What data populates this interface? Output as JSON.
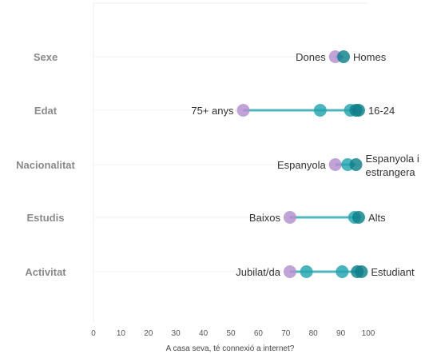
{
  "chart_data": {
    "type": "dumbbell",
    "xlabel": "A casa seva, té connexió a internet?",
    "xlim": [
      0,
      100
    ],
    "x_ticks": [
      0,
      10,
      20,
      30,
      40,
      50,
      60,
      70,
      80,
      90,
      100
    ],
    "colors": {
      "low": "#b48fd0",
      "mid": "#25a3ad",
      "high": "#0f7f8a",
      "line": "#4fb6bf"
    },
    "rows": [
      {
        "category": "Sexe",
        "points": [
          {
            "label": "Dones",
            "value": 88,
            "shade": "low"
          },
          {
            "label": "Homes",
            "value": 91,
            "shade": "high"
          }
        ]
      },
      {
        "category": "Edat",
        "points": [
          {
            "label": "75+ anys",
            "value": 54.5,
            "shade": "low"
          },
          {
            "label": "",
            "value": 82.5,
            "shade": "mid"
          },
          {
            "label": "",
            "value": 93.5,
            "shade": "mid"
          },
          {
            "label": "",
            "value": 95.5,
            "shade": "high"
          },
          {
            "label": "16-24",
            "value": 96.5,
            "shade": "high"
          }
        ]
      },
      {
        "category": "Nacionalitat",
        "points": [
          {
            "label": "Espanyola",
            "value": 88,
            "shade": "low"
          },
          {
            "label": "",
            "value": 92.5,
            "shade": "mid"
          },
          {
            "label": "Espanyola i estrangera",
            "value": 95.5,
            "shade": "high"
          }
        ]
      },
      {
        "category": "Estudis",
        "points": [
          {
            "label": "Baixos",
            "value": 71.5,
            "shade": "low"
          },
          {
            "label": "",
            "value": 95,
            "shade": "mid"
          },
          {
            "label": "Alts",
            "value": 96.5,
            "shade": "high"
          }
        ]
      },
      {
        "category": "Activitat",
        "points": [
          {
            "label": "Jubilat/da",
            "value": 71.5,
            "shade": "low"
          },
          {
            "label": "",
            "value": 77.5,
            "shade": "mid"
          },
          {
            "label": "",
            "value": 90.5,
            "shade": "mid"
          },
          {
            "label": "",
            "value": 96,
            "shade": "high"
          },
          {
            "label": "Estudiant",
            "value": 97.5,
            "shade": "high"
          }
        ]
      }
    ]
  }
}
